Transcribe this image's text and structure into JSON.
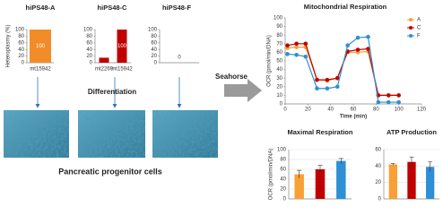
{
  "chart_data": [
    {
      "type": "bar",
      "title": "hiPS48-A",
      "ylabel": "Heteroplasmy (%)",
      "categories": [
        "mt15942"
      ],
      "values": [
        100
      ],
      "value_labels": [
        "100"
      ],
      "colors": [
        "#f28c28"
      ],
      "ylim": [
        0,
        100
      ],
      "yticks": [
        0,
        20,
        40,
        60,
        80,
        100
      ]
    },
    {
      "type": "bar",
      "title": "hiPS48-C",
      "categories": [
        "mt2269",
        "mt15942"
      ],
      "values": [
        15,
        100
      ],
      "value_labels": [
        null,
        "100"
      ],
      "colors": [
        "#c00000",
        "#c00000"
      ],
      "ylim": [
        0,
        100
      ],
      "yticks": [
        0,
        20,
        40,
        60,
        80,
        100
      ]
    },
    {
      "type": "bar",
      "title": "hiPS48-F",
      "categories": [
        null
      ],
      "values": [
        0
      ],
      "value_labels": [
        "0"
      ],
      "colors": [
        "#808080"
      ],
      "ylim": [
        0,
        100
      ],
      "yticks": [
        0,
        20,
        40,
        60,
        80,
        100
      ]
    },
    {
      "type": "line",
      "title": "Mitochondrial Respiration",
      "xlabel": "Time (min)",
      "ylabel": "OCR (pmol/min/DNA)",
      "x": [
        2,
        10,
        18,
        28,
        37,
        46,
        55,
        64,
        73,
        82,
        91,
        100
      ],
      "series": [
        {
          "name": "A",
          "color": "#f7a035",
          "values": [
            65,
            66,
            66,
            28,
            27,
            30,
            60,
            60,
            61,
            10,
            10,
            10
          ]
        },
        {
          "name": "C",
          "color": "#c00000",
          "values": [
            68,
            70,
            70,
            28,
            28,
            30,
            61,
            63,
            64,
            10,
            10,
            10
          ]
        },
        {
          "name": "F",
          "color": "#2e8fd6",
          "values": [
            58,
            57,
            55,
            18,
            18,
            20,
            68,
            77,
            78,
            2,
            2,
            2
          ]
        }
      ],
      "xlim": [
        0,
        120
      ],
      "xticks": [
        0,
        20,
        40,
        60,
        80,
        100,
        120
      ],
      "ylim": [
        0,
        100
      ],
      "yticks": [
        0,
        10,
        20,
        30,
        40,
        50,
        60,
        70,
        80,
        90,
        100
      ],
      "legend": "upper right"
    },
    {
      "type": "bar",
      "title": "Maximal Respiration",
      "ylabel": "OCR (pmol/min/DNA)",
      "categories": [
        null,
        null,
        null
      ],
      "values": [
        50,
        60,
        77
      ],
      "errors": [
        8,
        8,
        5
      ],
      "colors": [
        "#f7a035",
        "#c00000",
        "#2e8fd6"
      ],
      "ylim": [
        0,
        100
      ],
      "yticks": [
        0,
        20,
        40,
        60,
        80,
        100
      ],
      "grid": true
    },
    {
      "type": "bar",
      "title": "ATP Production",
      "categories": [
        null,
        null,
        null
      ],
      "values": [
        42,
        45,
        39
      ],
      "errors": [
        1,
        6,
        6
      ],
      "colors": [
        "#f7a035",
        "#c00000",
        "#2e8fd6"
      ],
      "ylim": [
        0,
        60
      ],
      "yticks": [
        0,
        20,
        40,
        60
      ],
      "grid": true
    }
  ],
  "figure": {
    "differentiation": "Differentiation",
    "seahorse": "Seahorse",
    "cells": "Pancreatic progenitor cells"
  }
}
